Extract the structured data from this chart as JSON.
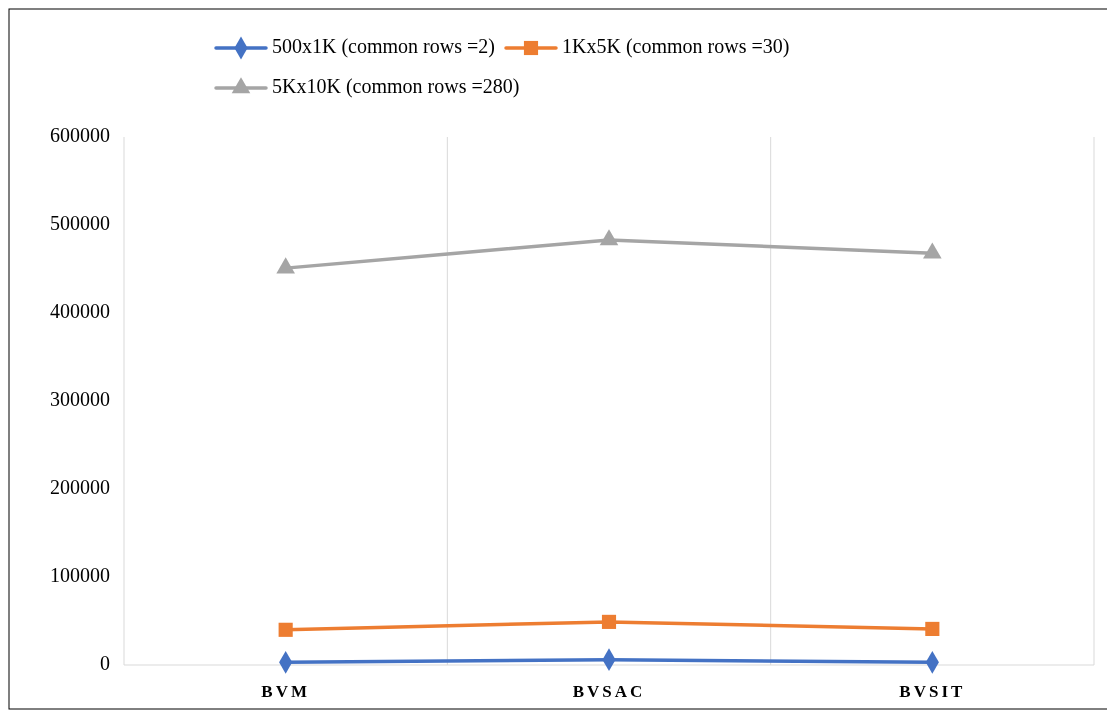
{
  "chart_data": {
    "type": "line",
    "categories": [
      "BVM",
      "BVSAC",
      "BVSIT"
    ],
    "series": [
      {
        "name": "500x1K (common rows =2)",
        "color": "#4472c4",
        "marker": "diamond",
        "values": [
          3000,
          6000,
          3000
        ]
      },
      {
        "name": "1Kx5K (common rows =30)",
        "color": "#ed7d31",
        "marker": "square",
        "values": [
          40000,
          49000,
          41000
        ]
      },
      {
        "name": "5Kx10K (common rows =280)",
        "color": "#a5a5a5",
        "marker": "triangle",
        "values": [
          451000,
          483000,
          468000
        ]
      }
    ],
    "ylim": [
      0,
      600000
    ],
    "yticks": [
      0,
      100000,
      200000,
      300000,
      400000,
      500000,
      600000
    ],
    "grid": "x",
    "legend": "top",
    "line_style": "solid"
  }
}
